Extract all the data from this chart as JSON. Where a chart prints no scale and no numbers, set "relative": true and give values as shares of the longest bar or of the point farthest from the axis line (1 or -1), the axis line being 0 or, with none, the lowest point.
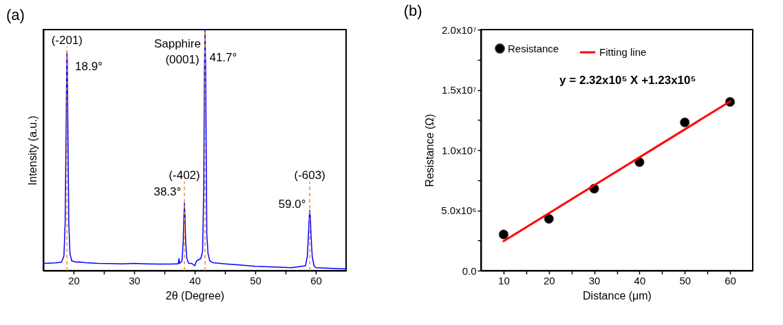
{
  "chart_data": [
    {
      "type": "line",
      "title": "(a)",
      "xlabel": "2θ (Degree)",
      "ylabel": "Intensity (a.u.)",
      "relative": true,
      "xlim": [
        15,
        65
      ],
      "xticks": [
        20,
        {
          "value": 25,
          "label": null
        },
        30,
        {
          "value": 35,
          "label": null
        },
        40,
        {
          "value": 45,
          "label": null
        },
        50,
        {
          "value": 55,
          "label": null
        },
        60
      ],
      "x": [
        15,
        16,
        17,
        18,
        18.4,
        18.6,
        18.75,
        18.85,
        18.9,
        18.95,
        19.05,
        19.2,
        19.4,
        19.7,
        20.5,
        21,
        22,
        24,
        26,
        28,
        30,
        32,
        34,
        36,
        37.3,
        37.4,
        37.5,
        37.9,
        38.1,
        38.2,
        38.3,
        38.4,
        38.5,
        38.7,
        39,
        39.5,
        40,
        40.3,
        41,
        41.3,
        41.5,
        41.6,
        41.7,
        41.8,
        41.9,
        42,
        42.2,
        42.5,
        43,
        45,
        47,
        50,
        53,
        56,
        58.3,
        58.6,
        58.8,
        58.95,
        59.0,
        59.1,
        59.2,
        59.4,
        59.7,
        60,
        62,
        64,
        65
      ],
      "series": [
        {
          "color": "#0000ff",
          "values": [
            0.03,
            0.031,
            0.032,
            0.035,
            0.06,
            0.2,
            0.55,
            0.85,
            0.91,
            0.88,
            0.6,
            0.2,
            0.07,
            0.04,
            0.035,
            0.036,
            0.033,
            0.03,
            0.029,
            0.028,
            0.03,
            0.028,
            0.027,
            0.027,
            0.028,
            0.05,
            0.03,
            0.04,
            0.12,
            0.22,
            0.28,
            0.22,
            0.12,
            0.05,
            0.03,
            0.03,
            0.02,
            0.04,
            0.05,
            0.08,
            0.35,
            0.8,
            1.0,
            0.85,
            0.5,
            0.15,
            0.07,
            0.04,
            0.033,
            0.028,
            0.024,
            0.018,
            0.015,
            0.012,
            0.02,
            0.06,
            0.16,
            0.24,
            0.25,
            0.22,
            0.15,
            0.06,
            0.02,
            0.012,
            0.01,
            0.008,
            0.007
          ]
        }
      ],
      "ref_lines": [
        {
          "axis": "x",
          "value": 18.9,
          "color": "#ff8c1a",
          "line_style": "dashed"
        },
        {
          "axis": "x",
          "value": 38.3,
          "color": "#ff8c1a",
          "line_style": "dashed"
        },
        {
          "axis": "x",
          "value": 41.7,
          "color": "#ff8c1a",
          "line_style": "dashed"
        },
        {
          "axis": "x",
          "value": 59.0,
          "color": "#ff8c1a",
          "line_style": "dashed"
        }
      ],
      "annotations": [
        {
          "text": "(-201)",
          "x": 18.9,
          "y": 0.93
        },
        "18.9°",
        "Sapphire",
        "(0001)",
        "41.7°",
        {
          "text": "(-402)",
          "x": 38.3,
          "y": 0.37
        },
        "38.3°",
        {
          "text": "(-603)",
          "x": 59.0,
          "y": 0.37
        },
        "59.0°"
      ]
    },
    {
      "type": "scatter",
      "title": "(b)",
      "xlabel": "Distance (μm)",
      "ylabel": "Resistance (Ω)",
      "xlim": [
        5,
        65
      ],
      "xticks": [
        10,
        {
          "value": 15,
          "label": null
        },
        20,
        {
          "value": 25,
          "label": null
        },
        30,
        {
          "value": 35,
          "label": null
        },
        40,
        {
          "value": 45,
          "label": null
        },
        50,
        {
          "value": 55,
          "label": null
        },
        60
      ],
      "ylim": [
        0,
        20000000
      ],
      "yticks": [
        {
          "value": 0,
          "label": "0.0"
        },
        {
          "value": 2500000,
          "label": null
        },
        {
          "value": 5000000,
          "label": "5.0x10⁶"
        },
        {
          "value": 7500000,
          "label": null
        },
        {
          "value": 10000000,
          "label": "1.0x10⁷"
        },
        {
          "value": 12500000,
          "label": null
        },
        {
          "value": 15000000,
          "label": "1.5x10⁷"
        },
        {
          "value": 17500000,
          "label": null
        },
        {
          "value": 20000000,
          "label": "2.0x10⁷"
        }
      ],
      "x": [
        10,
        20,
        30,
        40,
        50,
        60
      ],
      "series": [
        {
          "name": "Resistance",
          "marker": "circle",
          "color": "#000000",
          "values": [
            3000000,
            4300000,
            6800000,
            9000000,
            12300000,
            14000000
          ]
        },
        {
          "name": "Fitting line",
          "type": "line",
          "color": "#ff0000",
          "x": [
            10,
            60
          ],
          "values": [
            2440000,
            14040000
          ]
        }
      ],
      "legend": "top left",
      "annotations": [
        "y = 2.32x10⁵ X +1.23x10⁵"
      ]
    }
  ]
}
